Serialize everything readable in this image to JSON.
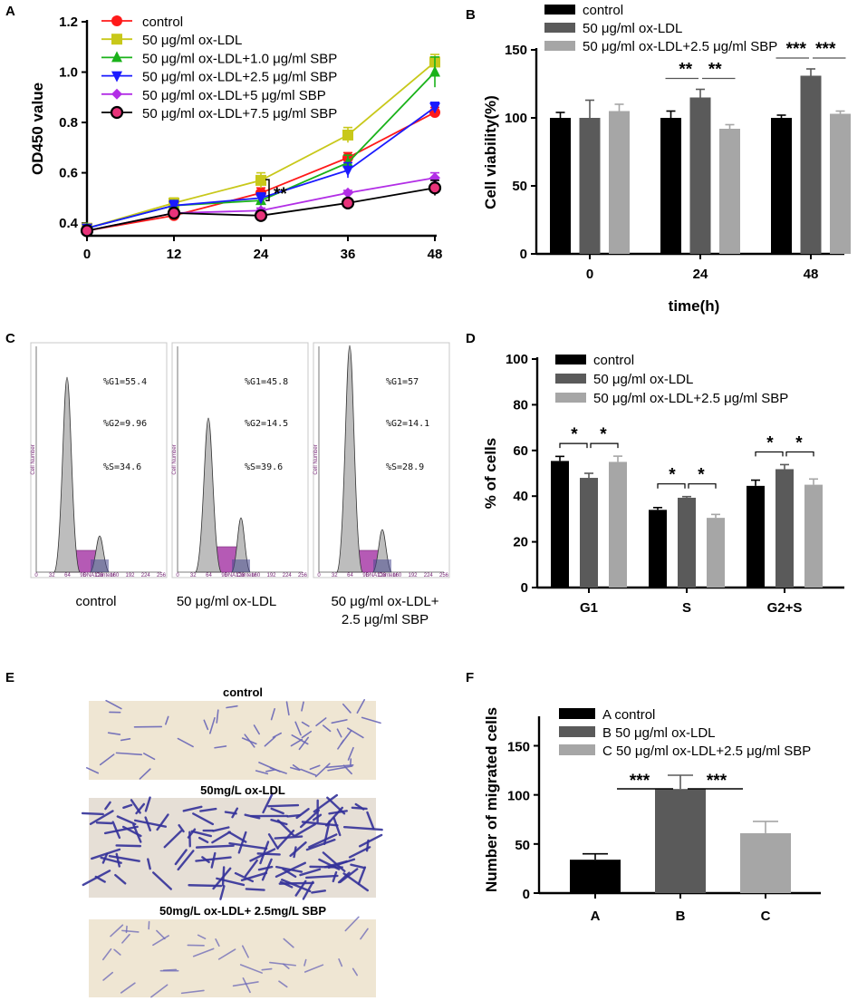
{
  "panels": {
    "A": "A",
    "B": "B",
    "C": "C",
    "D": "D",
    "E": "E",
    "F": "F"
  },
  "chart_data": [
    {
      "id": "A",
      "type": "line",
      "ylabel": "OD450 value",
      "xlabel": "",
      "x": [
        0,
        12,
        24,
        36,
        48
      ],
      "xticks": [
        "0",
        "12",
        "24",
        "36",
        "48"
      ],
      "ylim": [
        0.35,
        1.2
      ],
      "yticks": [
        "0.4",
        "0.6",
        "0.8",
        "1.0",
        "1.2"
      ],
      "ytick_values": [
        0.4,
        0.6,
        0.8,
        1.0,
        1.2
      ],
      "annotation": "**",
      "series": [
        {
          "name": "control",
          "color": "#ff1a1a",
          "marker": "circle",
          "values": [
            0.37,
            0.43,
            0.52,
            0.66,
            0.84
          ],
          "err": [
            0.01,
            0.01,
            0.02,
            0.02,
            0.02
          ]
        },
        {
          "name": "50 μg/ml ox-LDL",
          "color": "#c8c81a",
          "marker": "square",
          "values": [
            0.38,
            0.48,
            0.57,
            0.75,
            1.04
          ],
          "err": [
            0.01,
            0.02,
            0.03,
            0.03,
            0.03
          ]
        },
        {
          "name": "50 μg/ml ox-LDL+1.0 μg/ml SBP",
          "color": "#1ab21a",
          "marker": "triangle-up",
          "values": [
            0.38,
            0.47,
            0.49,
            0.64,
            1.0
          ],
          "err": [
            0.01,
            0.02,
            0.02,
            0.03,
            0.06
          ]
        },
        {
          "name": "50 μg/ml ox-LDL+2.5 μg/ml SBP",
          "color": "#1a1aff",
          "marker": "triangle-down",
          "values": [
            0.38,
            0.47,
            0.5,
            0.61,
            0.86
          ],
          "err": [
            0.01,
            0.02,
            0.02,
            0.03,
            0.02
          ]
        },
        {
          "name": "50 μg/ml ox-LDL+5 μg/ml SBP",
          "color": "#b22ee6",
          "marker": "diamond",
          "values": [
            0.37,
            0.44,
            0.45,
            0.52,
            0.58
          ],
          "err": [
            0.01,
            0.01,
            0.01,
            0.01,
            0.02
          ]
        },
        {
          "name": "50 μg/ml ox-LDL+7.5 μg/ml SBP",
          "color": "#000000",
          "marker": "circle-pink",
          "values": [
            0.37,
            0.44,
            0.43,
            0.48,
            0.54
          ],
          "err": [
            0.01,
            0.01,
            0.01,
            0.01,
            0.03
          ]
        }
      ]
    },
    {
      "id": "B",
      "type": "bar",
      "ylabel": "Cell viability(%)",
      "xlabel": "time(h)",
      "categories": [
        "0",
        "24",
        "48"
      ],
      "ylim": [
        0,
        150
      ],
      "yticks": [
        "0",
        "50",
        "100",
        "150"
      ],
      "ytick_values": [
        0,
        50,
        100,
        150
      ],
      "series": [
        {
          "name": "control",
          "color": "#000000",
          "values": [
            100,
            100,
            100
          ],
          "err": [
            4,
            5,
            2
          ]
        },
        {
          "name": "50 μg/ml ox-LDL",
          "color": "#5a5a5a",
          "values": [
            100,
            115,
            131
          ],
          "err": [
            13,
            6,
            5
          ]
        },
        {
          "name": "50 μg/ml ox-LDL+2.5 μg/ml SBP",
          "color": "#a6a6a6",
          "values": [
            105,
            92,
            103
          ],
          "err": [
            5,
            3,
            2
          ]
        }
      ],
      "significance": [
        {
          "category": "24",
          "left": "**",
          "right": "**"
        },
        {
          "category": "48",
          "left": "***",
          "right": "***"
        }
      ]
    },
    {
      "id": "D",
      "type": "bar",
      "ylabel": "% of cells",
      "xlabel": "",
      "categories": [
        "G1",
        "S",
        "G2+S"
      ],
      "ylim": [
        0,
        100
      ],
      "yticks": [
        "0",
        "20",
        "40",
        "60",
        "80",
        "100"
      ],
      "ytick_values": [
        0,
        20,
        40,
        60,
        80,
        100
      ],
      "series": [
        {
          "name": "control",
          "color": "#000000",
          "values": [
            55.4,
            34,
            44.5
          ],
          "err": [
            2,
            1,
            2.5
          ]
        },
        {
          "name": "50 μg/ml ox-LDL",
          "color": "#5a5a5a",
          "values": [
            48,
            39.3,
            51.8
          ],
          "err": [
            2,
            0.5,
            2
          ]
        },
        {
          "name": "50 μg/ml ox-LDL+2.5 μg/ml SBP",
          "color": "#a6a6a6",
          "values": [
            55,
            30.5,
            45
          ],
          "err": [
            2.5,
            1.5,
            2.5
          ]
        }
      ],
      "significance": [
        {
          "category": "G1",
          "left": "*",
          "right": "*"
        },
        {
          "category": "S",
          "left": "*",
          "right": "*"
        },
        {
          "category": "G2+S",
          "left": "*",
          "right": "*"
        }
      ]
    },
    {
      "id": "F",
      "type": "bar",
      "ylabel": "Number of migrated cells",
      "xlabel": "",
      "categories": [
        "A",
        "B",
        "C"
      ],
      "ylim": [
        0,
        180
      ],
      "yticks": [
        "0",
        "50",
        "100",
        "150"
      ],
      "ytick_values": [
        0,
        50,
        100,
        150
      ],
      "legend": [
        "A control",
        "B 50 μg/ml ox-LDL",
        "C 50 μg/ml ox-LDL+2.5 μg/ml SBP"
      ],
      "colors": [
        "#000000",
        "#5a5a5a",
        "#a6a6a6"
      ],
      "values": [
        34,
        106,
        61
      ],
      "err": [
        6,
        14,
        12
      ],
      "significance": [
        "***",
        "***"
      ]
    }
  ],
  "histograms": {
    "ylabel": "Cell Number",
    "xlabel": "DNA Content",
    "xticks": [
      "0",
      "32",
      "64",
      "96",
      "128",
      "160",
      "192",
      "224",
      "256"
    ],
    "items": [
      {
        "caption": "control",
        "g1": "%G1=55.4",
        "g2": "%G2=9.96",
        "s": "%S=34.6"
      },
      {
        "caption": "50 μg/ml ox-LDL",
        "g1": "%G1=45.8",
        "g2": "%G2=14.5",
        "s": "%S=39.6"
      },
      {
        "caption1": "50 μg/ml ox-LDL+",
        "caption2": "2.5 μg/ml SBP",
        "g1": "%G1=57",
        "g2": "%G2=14.1",
        "s": "%S=28.9"
      }
    ]
  },
  "micrographs": [
    {
      "caption": "control"
    },
    {
      "caption": "50mg/L ox-LDL"
    },
    {
      "caption": "50mg/L ox-LDL+ 2.5mg/L SBP"
    }
  ]
}
